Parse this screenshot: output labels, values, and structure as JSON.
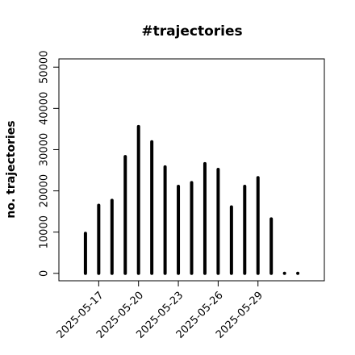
{
  "chart_data": {
    "type": "bar",
    "title": "#trajectories",
    "y_label": "no. trajectories",
    "x": [
      "2025-05-16",
      "2025-05-17",
      "2025-05-18",
      "2025-05-19",
      "2025-05-20",
      "2025-05-21",
      "2025-05-22",
      "2025-05-23",
      "2025-05-24",
      "2025-05-25",
      "2025-05-26",
      "2025-05-27",
      "2025-05-28",
      "2025-05-29",
      "2025-05-30",
      "2025-05-31",
      "2025-06-01"
    ],
    "values": [
      9700,
      16500,
      17700,
      28300,
      35600,
      31900,
      25800,
      21100,
      22000,
      26600,
      25200,
      16100,
      21100,
      23200,
      13200,
      0,
      0
    ],
    "color": "#000000",
    "xlim": [
      "2025-05-14",
      "2025-06-03"
    ],
    "xticks": [
      "2025-05-17",
      "2025-05-20",
      "2025-05-23",
      "2025-05-26",
      "2025-05-29"
    ],
    "ylim": [
      -1800,
      52000
    ],
    "yticks": [
      0,
      10000,
      20000,
      30000,
      40000,
      50000
    ]
  }
}
